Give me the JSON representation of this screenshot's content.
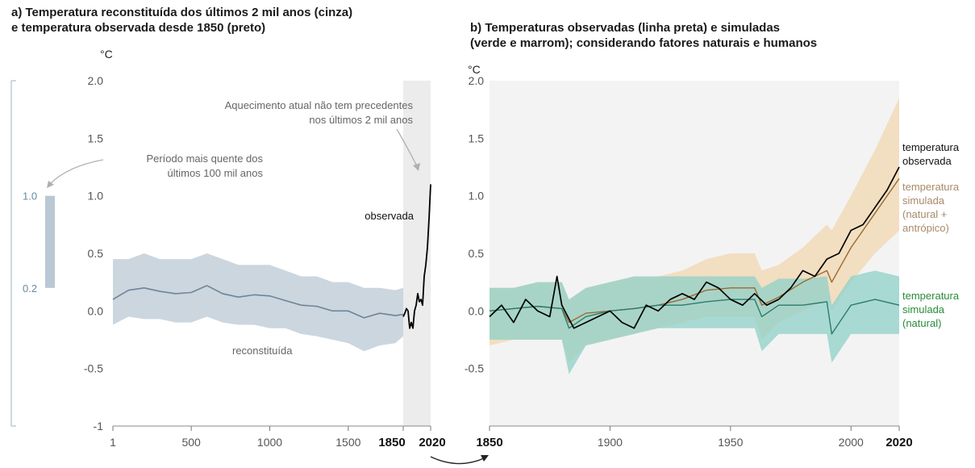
{
  "chart_data": [
    {
      "type": "line",
      "title_line1": "a) Temperatura reconstituída dos últimos 2 mil anos (cinza)",
      "title_line2": "e temperatura observada desde 1850 (preto)",
      "ylabel": "°C",
      "ylim": [
        -1,
        2
      ],
      "y_ticks": [
        "2.0",
        "1.5",
        "1.0",
        "0.5",
        "0.0",
        "-0.5",
        "-1"
      ],
      "x_ticks": [
        "1",
        "500",
        "1000",
        "1500"
      ],
      "x_ticks_bold": [
        "1850",
        "2020"
      ],
      "x_breakpoints": [
        1,
        1850,
        2020
      ],
      "side_bar": {
        "low": 0.2,
        "high": 1.0,
        "label_low": "0.2",
        "label_high": "1.0"
      },
      "annotations": {
        "warmest": [
          "Período mais quente dos",
          "últimos 100 mil anos"
        ],
        "unprecedented": [
          "Aquecimento atual não tem precedentes",
          "nos últimos 2 mil anos"
        ]
      },
      "series": [
        {
          "name": "reconstituída",
          "color": "#6f8597",
          "band_color": "#b9c8d4",
          "x": [
            1,
            100,
            200,
            300,
            400,
            500,
            600,
            700,
            800,
            900,
            1000,
            1100,
            1200,
            1300,
            1400,
            1500,
            1600,
            1700,
            1800,
            1850
          ],
          "y": [
            0.1,
            0.18,
            0.2,
            0.17,
            0.15,
            0.16,
            0.22,
            0.15,
            0.12,
            0.14,
            0.13,
            0.09,
            0.05,
            0.04,
            0.0,
            0.0,
            -0.06,
            -0.02,
            -0.04,
            -0.03
          ],
          "band_lo": [
            -0.12,
            -0.05,
            -0.07,
            -0.07,
            -0.1,
            -0.1,
            -0.05,
            -0.1,
            -0.12,
            -0.12,
            -0.15,
            -0.15,
            -0.2,
            -0.22,
            -0.25,
            -0.28,
            -0.35,
            -0.3,
            -0.28,
            -0.22
          ],
          "band_hi": [
            0.45,
            0.45,
            0.5,
            0.45,
            0.45,
            0.45,
            0.5,
            0.45,
            0.4,
            0.4,
            0.4,
            0.35,
            0.3,
            0.3,
            0.25,
            0.25,
            0.2,
            0.2,
            0.18,
            0.2
          ]
        },
        {
          "name": "observada",
          "color": "#000000",
          "x": [
            1850,
            1860,
            1870,
            1880,
            1890,
            1900,
            1910,
            1920,
            1930,
            1940,
            1950,
            1960,
            1970,
            1980,
            1990,
            2000,
            2010,
            2020
          ],
          "y": [
            -0.05,
            -0.02,
            0.02,
            0.0,
            -0.15,
            -0.1,
            -0.15,
            0.0,
            0.05,
            0.15,
            0.08,
            0.1,
            0.05,
            0.3,
            0.4,
            0.55,
            0.8,
            1.1
          ]
        }
      ]
    },
    {
      "type": "line",
      "title_line1": "b) Temperaturas observadas (linha preta) e simuladas",
      "title_line2": "(verde e marrom); considerando fatores naturais e humanos",
      "ylabel": "°C",
      "ylim": [
        -1,
        2
      ],
      "y_ticks": [
        "2.0",
        "1.5",
        "1.0",
        "0.5",
        "0.0",
        "-0.5"
      ],
      "x_ticks": [
        "1900",
        "1950",
        "2000"
      ],
      "x_ticks_bold": [
        "1850",
        "2020"
      ],
      "xlim": [
        1850,
        2020
      ],
      "series": [
        {
          "name_lines": [
            "temperatura",
            "simulada",
            "(natural +",
            "antrópico)"
          ],
          "color": "#9a6a2f",
          "label_color": "#a88a6a",
          "band_color": "#f2d7b0",
          "x": [
            1850,
            1860,
            1870,
            1880,
            1883,
            1890,
            1900,
            1910,
            1920,
            1930,
            1940,
            1950,
            1960,
            1963,
            1970,
            1980,
            1990,
            1992,
            2000,
            2010,
            2020
          ],
          "y": [
            0.0,
            0.02,
            0.04,
            0.02,
            -0.1,
            -0.02,
            0.0,
            0.02,
            0.05,
            0.1,
            0.18,
            0.2,
            0.2,
            0.05,
            0.12,
            0.25,
            0.35,
            0.25,
            0.55,
            0.85,
            1.15
          ],
          "band_lo": [
            -0.3,
            -0.25,
            -0.25,
            -0.25,
            -0.45,
            -0.3,
            -0.25,
            -0.2,
            -0.15,
            -0.1,
            -0.05,
            -0.05,
            -0.05,
            -0.25,
            -0.1,
            0.0,
            0.1,
            0.0,
            0.25,
            0.5,
            0.7
          ],
          "band_hi": [
            0.2,
            0.2,
            0.25,
            0.25,
            0.1,
            0.2,
            0.25,
            0.3,
            0.3,
            0.35,
            0.45,
            0.5,
            0.5,
            0.35,
            0.4,
            0.55,
            0.75,
            0.7,
            1.0,
            1.4,
            1.85
          ]
        },
        {
          "name_lines": [
            "temperatura",
            "simulada",
            "(natural)"
          ],
          "color": "#2b7c6c",
          "label_color": "#2a8a3c",
          "band_color": "#8fd0c8",
          "x": [
            1850,
            1860,
            1870,
            1880,
            1883,
            1890,
            1900,
            1910,
            1920,
            1930,
            1940,
            1950,
            1960,
            1963,
            1970,
            1980,
            1990,
            1992,
            2000,
            2010,
            2020
          ],
          "y": [
            0.0,
            0.02,
            0.04,
            0.02,
            -0.15,
            -0.05,
            0.0,
            0.02,
            0.05,
            0.05,
            0.08,
            0.1,
            0.1,
            -0.05,
            0.05,
            0.05,
            0.08,
            -0.2,
            0.05,
            0.1,
            0.05
          ],
          "band_lo": [
            -0.25,
            -0.25,
            -0.25,
            -0.25,
            -0.55,
            -0.3,
            -0.25,
            -0.2,
            -0.15,
            -0.15,
            -0.15,
            -0.15,
            -0.15,
            -0.35,
            -0.2,
            -0.2,
            -0.2,
            -0.45,
            -0.2,
            -0.2,
            -0.2
          ],
          "band_hi": [
            0.2,
            0.2,
            0.25,
            0.25,
            0.1,
            0.2,
            0.25,
            0.3,
            0.3,
            0.3,
            0.3,
            0.3,
            0.3,
            0.2,
            0.28,
            0.28,
            0.3,
            0.05,
            0.3,
            0.35,
            0.3
          ]
        },
        {
          "name_lines": [
            "temperatura",
            "observada"
          ],
          "color": "#000000",
          "label_color": "#111111",
          "x": [
            1850,
            1855,
            1860,
            1865,
            1870,
            1875,
            1878,
            1880,
            1885,
            1890,
            1895,
            1900,
            1905,
            1910,
            1915,
            1920,
            1925,
            1930,
            1935,
            1940,
            1945,
            1950,
            1955,
            1960,
            1965,
            1970,
            1975,
            1980,
            1985,
            1990,
            1995,
            2000,
            2005,
            2010,
            2015,
            2020
          ],
          "y": [
            -0.05,
            0.05,
            -0.1,
            0.1,
            0.0,
            -0.05,
            0.3,
            0.05,
            -0.15,
            -0.1,
            -0.05,
            0.0,
            -0.1,
            -0.15,
            0.05,
            0.0,
            0.1,
            0.15,
            0.1,
            0.25,
            0.2,
            0.1,
            0.05,
            0.15,
            0.05,
            0.1,
            0.2,
            0.35,
            0.3,
            0.45,
            0.5,
            0.7,
            0.75,
            0.9,
            1.05,
            1.25
          ]
        }
      ]
    }
  ]
}
